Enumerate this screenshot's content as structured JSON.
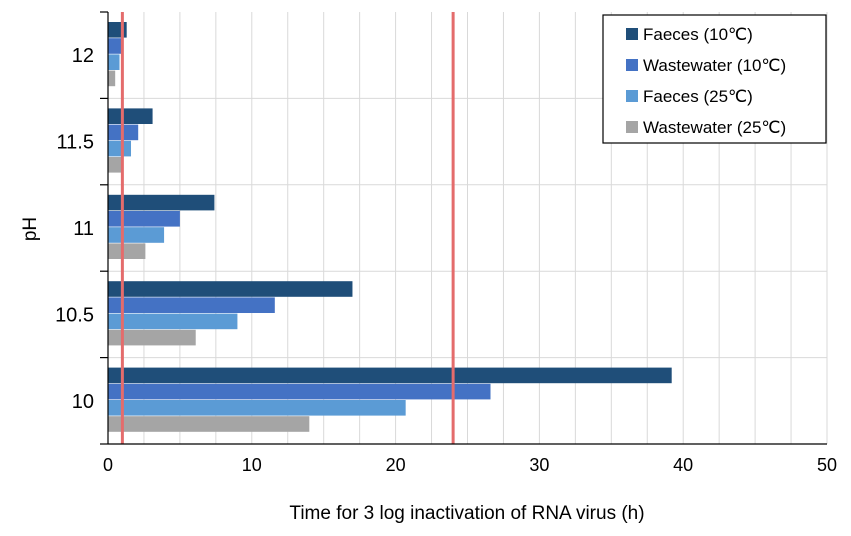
{
  "chart_data": {
    "type": "bar",
    "orientation": "horizontal",
    "categories": [
      "10",
      "10.5",
      "11",
      "11.5",
      "12"
    ],
    "series": [
      {
        "name": "Faeces (10℃)",
        "color": "#1f4e79",
        "values": [
          39.2,
          17.0,
          7.4,
          3.1,
          1.3
        ]
      },
      {
        "name": "Wastewater (10℃)",
        "color": "#4472c4",
        "values": [
          26.6,
          11.6,
          5.0,
          2.1,
          1.0
        ]
      },
      {
        "name": "Faeces (25℃)",
        "color": "#5b9bd5",
        "values": [
          20.7,
          9.0,
          3.9,
          1.6,
          0.8
        ]
      },
      {
        "name": "Wastewater (25℃)",
        "color": "#a5a5a5",
        "values": [
          14.0,
          6.1,
          2.6,
          1.0,
          0.5
        ]
      }
    ],
    "reference_lines": [
      {
        "value": 1,
        "color": "#e46c6c"
      },
      {
        "value": 24,
        "color": "#e46c6c"
      }
    ],
    "xlabel": "Time for 3 log inactivation of RNA virus (h)",
    "ylabel": "pH",
    "xlim": [
      0,
      50
    ],
    "xticks": [
      "0",
      "10",
      "20",
      "30",
      "40",
      "50"
    ],
    "grid": "vertical",
    "legend_position": "top-right"
  }
}
